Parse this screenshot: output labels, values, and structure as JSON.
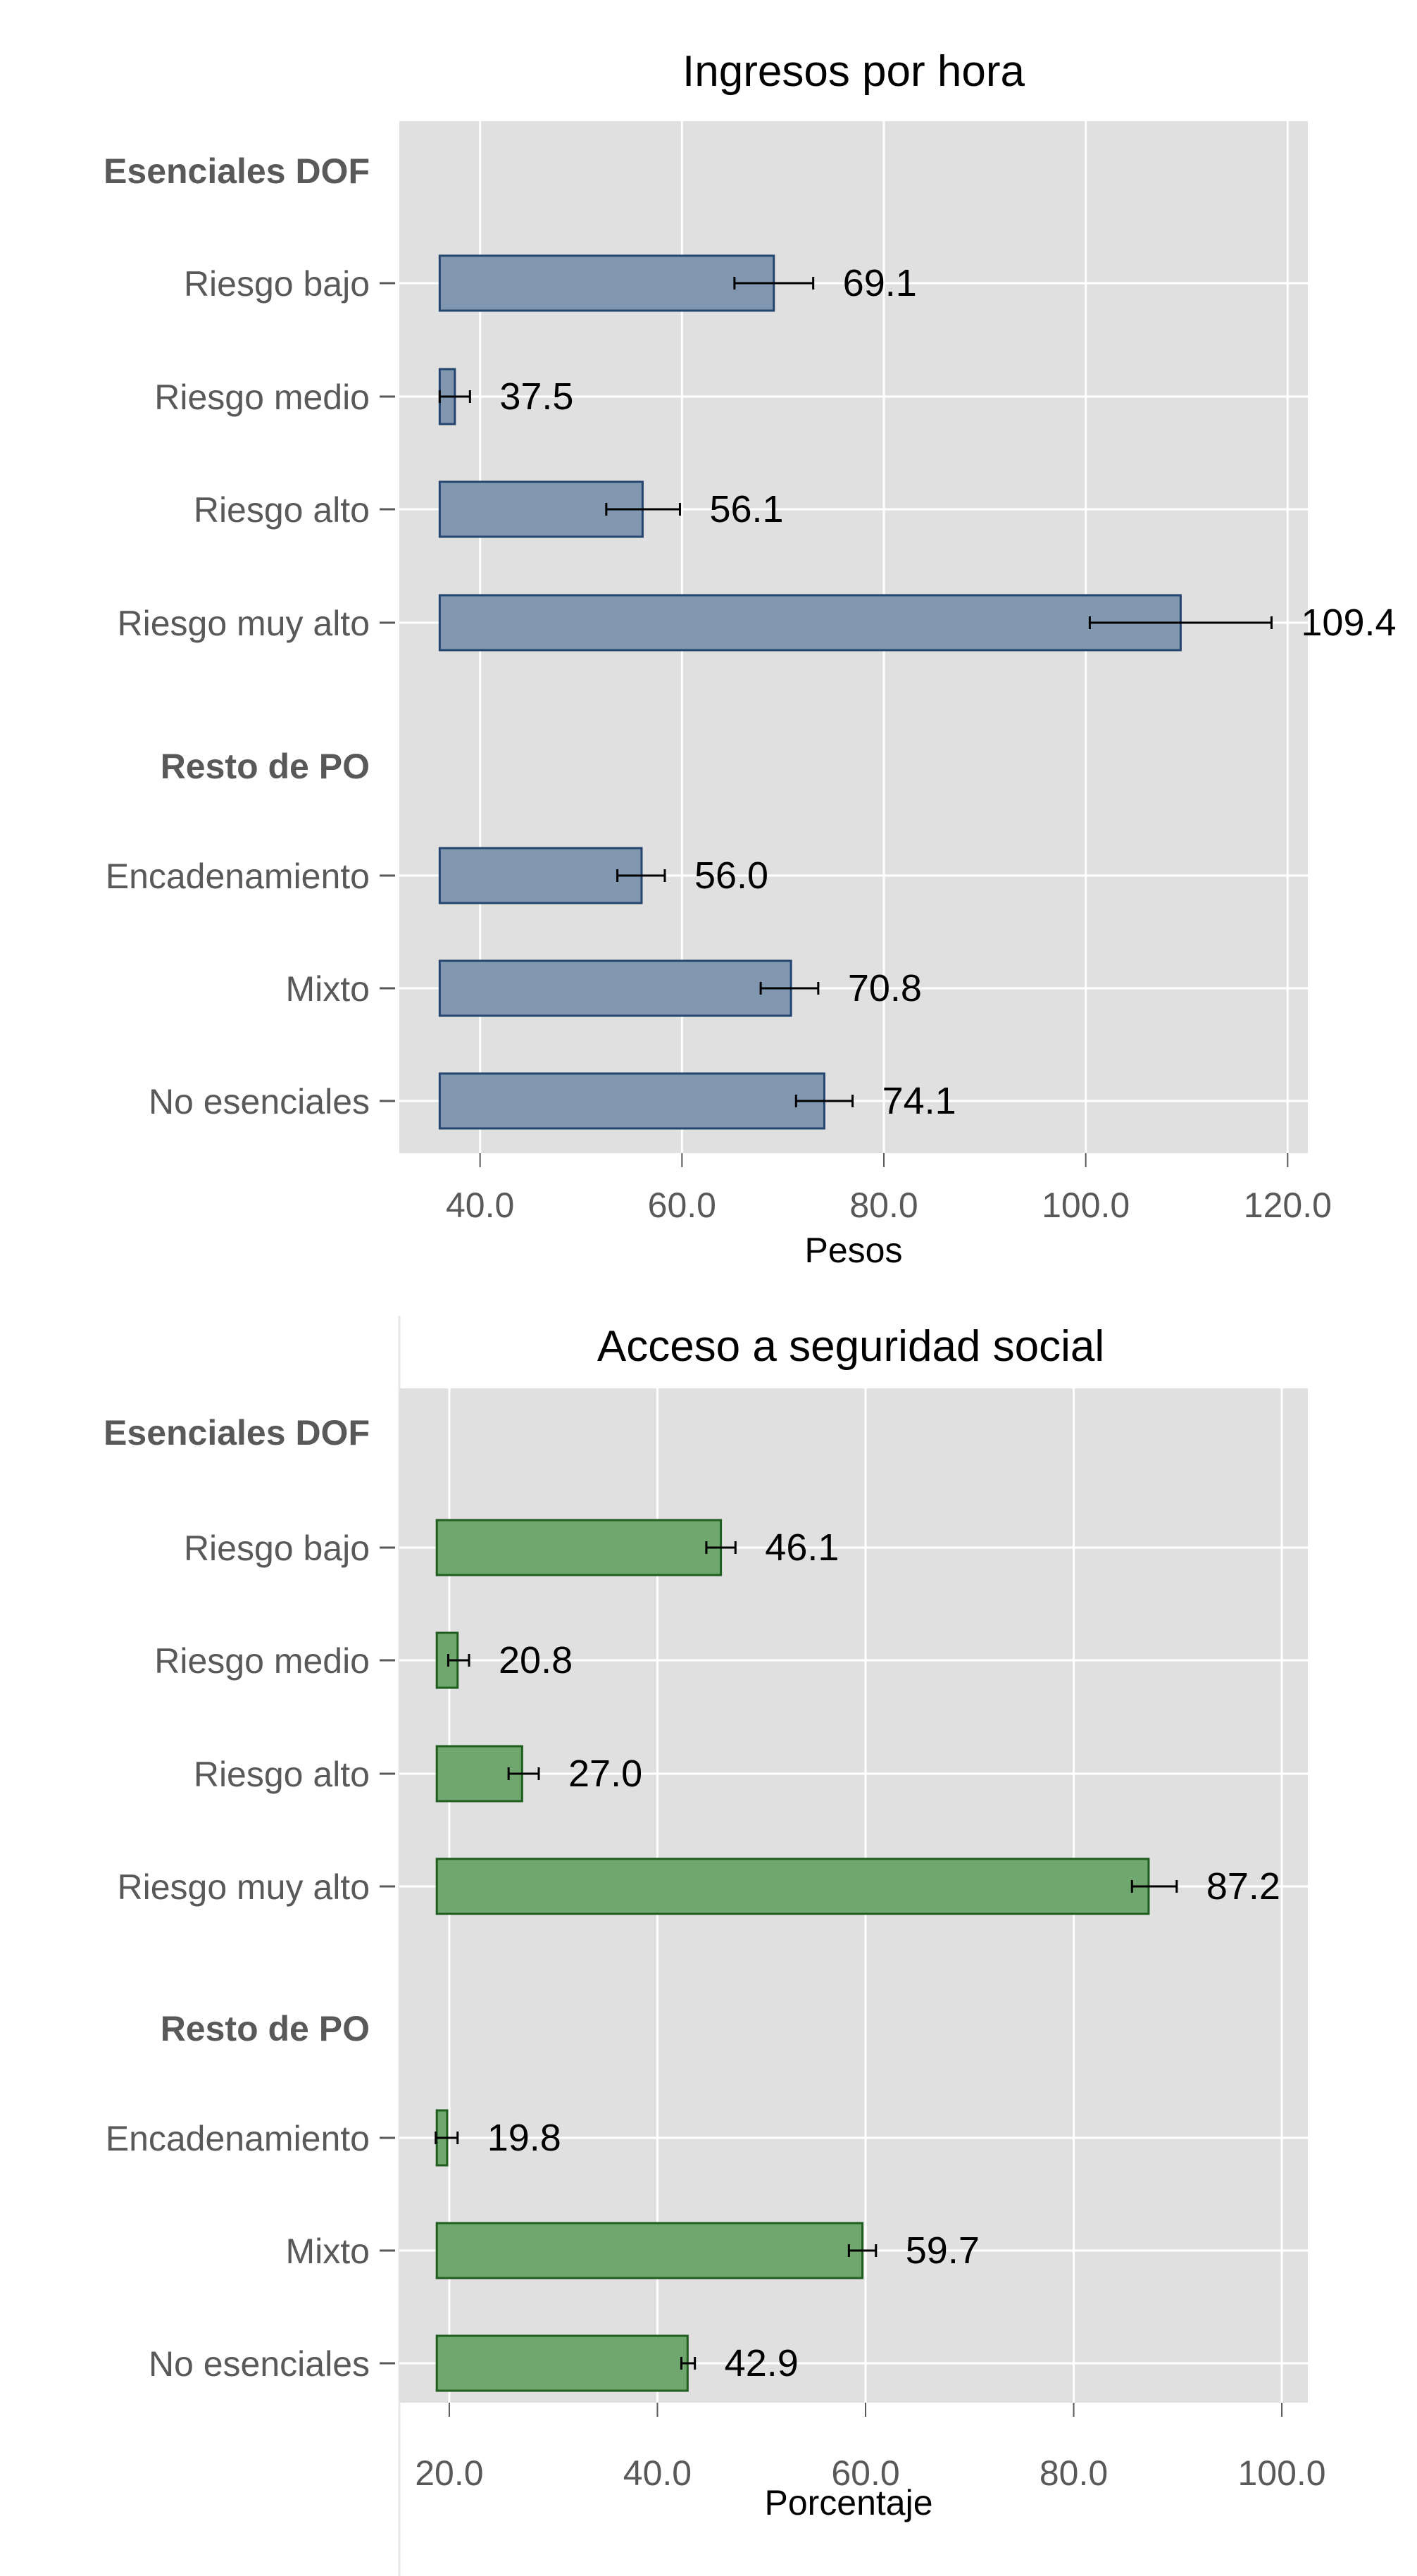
{
  "chart_data": [
    {
      "type": "bar",
      "orientation": "horizontal",
      "title": "Ingresos por hora",
      "xlabel": "Pesos",
      "xlim": [
        32.0,
        122.0
      ],
      "baseline": 36.0,
      "ticks": [
        40,
        60,
        80,
        100,
        120
      ],
      "tick_labels": [
        "40.0",
        "60.0",
        "80.0",
        "100.0",
        "120.0"
      ],
      "bar_color": "#8197b0",
      "bar_edge": "#23456e",
      "groups": [
        {
          "label": "Esenciales DOF",
          "items": [
            {
              "label": "Riesgo bajo",
              "value": 69.1,
              "value_label": "69.1",
              "ci": [
                65.2,
                73.0
              ]
            },
            {
              "label": "Riesgo medio",
              "value": 37.5,
              "value_label": "37.5",
              "ci": [
                36.0,
                39.0
              ]
            },
            {
              "label": "Riesgo alto",
              "value": 56.1,
              "value_label": "56.1",
              "ci": [
                52.5,
                59.8
              ]
            },
            {
              "label": "Riesgo muy alto",
              "value": 109.4,
              "value_label": "109.4",
              "ci": [
                100.4,
                118.4
              ]
            }
          ]
        },
        {
          "label": "Resto de PO",
          "items": [
            {
              "label": "Encadenamiento",
              "value": 56.0,
              "value_label": "56.0",
              "ci": [
                53.6,
                58.3
              ]
            },
            {
              "label": "Mixto",
              "value": 70.8,
              "value_label": "70.8",
              "ci": [
                67.8,
                73.5
              ]
            },
            {
              "label": "No esenciales",
              "value": 74.1,
              "value_label": "74.1",
              "ci": [
                71.3,
                76.9
              ]
            }
          ]
        }
      ]
    },
    {
      "type": "bar",
      "orientation": "horizontal",
      "title": "Acceso a seguridad social",
      "xlabel": "Porcentaje",
      "xlim": [
        15.2,
        102.5
      ],
      "baseline": 18.8,
      "ticks": [
        20,
        40,
        60,
        80,
        100
      ],
      "tick_labels": [
        "20.0",
        "40.0",
        "60.0",
        "80.0",
        "100.0"
      ],
      "bar_color": "#70a76e",
      "bar_edge": "#1f5e1f",
      "groups": [
        {
          "label": "Esenciales DOF",
          "items": [
            {
              "label": "Riesgo bajo",
              "value": 46.1,
              "value_label": "46.1",
              "ci": [
                44.7,
                47.5
              ]
            },
            {
              "label": "Riesgo medio",
              "value": 20.8,
              "value_label": "20.8",
              "ci": [
                19.9,
                21.9
              ]
            },
            {
              "label": "Riesgo alto",
              "value": 27.0,
              "value_label": "27.0",
              "ci": [
                25.7,
                28.6
              ]
            },
            {
              "label": "Riesgo muy alto",
              "value": 87.2,
              "value_label": "87.2",
              "ci": [
                85.6,
                89.9
              ]
            }
          ]
        },
        {
          "label": "Resto de PO",
          "items": [
            {
              "label": "Encadenamiento",
              "value": 19.8,
              "value_label": "19.8",
              "ci": [
                18.7,
                20.8
              ]
            },
            {
              "label": "Mixto",
              "value": 59.7,
              "value_label": "59.7",
              "ci": [
                58.4,
                61.0
              ]
            },
            {
              "label": "No esenciales",
              "value": 42.9,
              "value_label": "42.9",
              "ci": [
                42.3,
                43.6
              ]
            }
          ]
        }
      ]
    }
  ]
}
